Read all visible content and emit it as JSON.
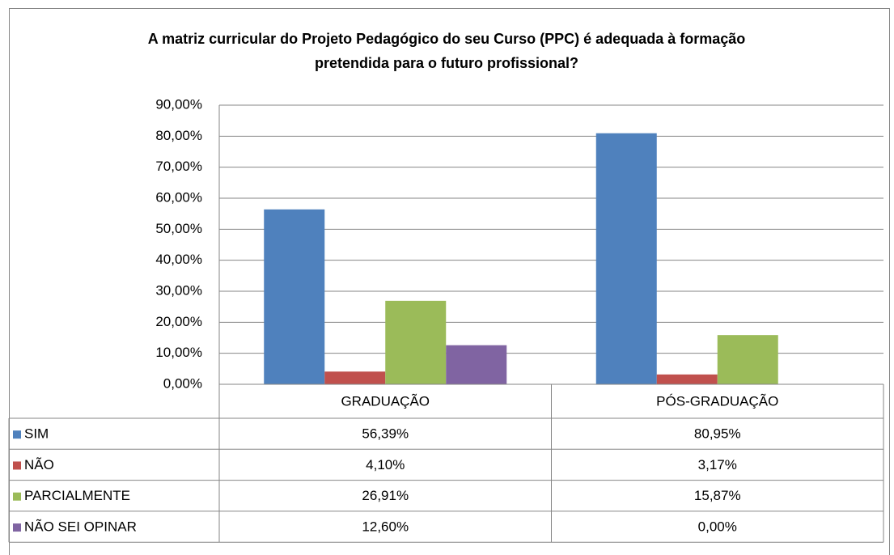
{
  "chart_data": {
    "type": "bar",
    "title": "A matriz curricular do Projeto Pedagógico do seu Curso (PPC) é adequada à formação pretendida para o futuro profissional?",
    "categories": [
      "GRADUAÇÃO",
      "PÓS-GRADUAÇÃO"
    ],
    "series": [
      {
        "name": "SIM",
        "color": "#4f81bd",
        "values": [
          56.39,
          80.95
        ],
        "value_labels": [
          "56,39%",
          "80,95%"
        ]
      },
      {
        "name": "NÃO",
        "color": "#c0504d",
        "values": [
          4.1,
          3.17
        ],
        "value_labels": [
          "4,10%",
          "3,17%"
        ]
      },
      {
        "name": "PARCIALMENTE",
        "color": "#9bbb59",
        "values": [
          26.91,
          15.87
        ],
        "value_labels": [
          "26,91%",
          "15,87%"
        ]
      },
      {
        "name": "NÃO SEI OPINAR",
        "color": "#8064a2",
        "values": [
          12.6,
          0.0
        ],
        "value_labels": [
          "12,60%",
          "0,00%"
        ]
      }
    ],
    "ylim": [
      0,
      90
    ],
    "yticks": [
      {
        "value": 0,
        "label": "0,00%"
      },
      {
        "value": 10,
        "label": "10,00%"
      },
      {
        "value": 20,
        "label": "20,00%"
      },
      {
        "value": 30,
        "label": "30,00%"
      },
      {
        "value": 40,
        "label": "40,00%"
      },
      {
        "value": 50,
        "label": "50,00%"
      },
      {
        "value": 60,
        "label": "60,00%"
      },
      {
        "value": 70,
        "label": "70,00%"
      },
      {
        "value": 80,
        "label": "80,00%"
      },
      {
        "value": 90,
        "label": "90,00%"
      }
    ],
    "grid": true
  }
}
